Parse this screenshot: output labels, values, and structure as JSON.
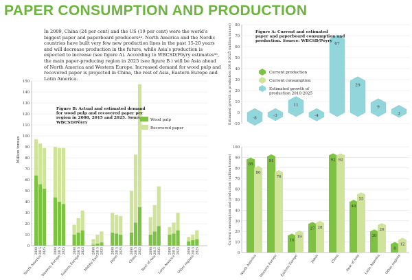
{
  "page": {
    "title": "PAPER CONSUMPTION AND PRODUCTION",
    "intro": "In 2009, China (24 per cent) and the US (19 per cent) were the world's biggest paper and paperboard producers³⁴. North America and the Nordic countries have built very few new production lines in the past 15-20 years and will decrease production in the future, while Asia's production is expected to increase (see figure A). According to WBCSD/Pöyry estimates³⁵, the main paper-producing region in 2025 (see figure B ) will be Asia ahead of North America and Western Europe. Increased demand for wood pulp and recovered paper is projected in China, the rest of Asia, Eastern Europe and Latin America."
  },
  "colors": {
    "title": "#6db33f",
    "wood_pulp": "#7dc242",
    "recovered_paper": "#cfe49a",
    "current_production": "#7dc242",
    "current_consumption": "#cfe49a",
    "estimated_growth": "#92d6dc",
    "grid": "#e2e2e2"
  },
  "chart_data": [
    {
      "type": "bar",
      "stacked": true,
      "title": "Figure B: Actual and estimated demand for wood pulp and recovered paper per region in 2008, 2015 and 2025. Source: WBCSD/Pöyry",
      "ylabel": "Million tonnes",
      "ylim": [
        0,
        150
      ],
      "yticks": [
        0,
        10,
        20,
        30,
        40,
        50,
        60,
        70,
        80,
        90,
        100,
        110,
        120,
        130,
        140,
        150
      ],
      "grid": true,
      "legend": "right",
      "years": [
        "2008",
        "2015",
        "2025"
      ],
      "categories": [
        "North America",
        "Western Europe",
        "Eastern Europe",
        "Middle East",
        "Japan",
        "China",
        "Rest of Asia",
        "Latin America",
        "Other regions"
      ],
      "series": [
        {
          "name": "Wood pulp",
          "color_key": "wood_pulp",
          "values": [
            [
              64,
              56,
              52
            ],
            [
              44,
              40,
              38
            ],
            [
              10,
              12,
              14
            ],
            [
              1,
              2,
              3
            ],
            [
              12,
              11,
              10
            ],
            [
              12,
              21,
              35
            ],
            [
              10,
              13,
              18
            ],
            [
              10,
              11,
              14
            ],
            [
              4,
              5,
              6
            ]
          ]
        },
        {
          "name": "Recovered paper",
          "color_key": "recovered_paper",
          "values": [
            [
              33,
              37,
              37
            ],
            [
              46,
              49,
              51
            ],
            [
              9,
              13,
              18
            ],
            [
              5,
              8,
              10
            ],
            [
              18,
              17,
              17
            ],
            [
              38,
              62,
              112
            ],
            [
              16,
              24,
              36
            ],
            [
              7,
              10,
              16
            ],
            [
              4,
              5,
              8
            ]
          ]
        }
      ]
    },
    {
      "type": "bar",
      "title": "Figure A: Current and estimated paper and paperboard consumption and production. Source: WBCSD/Pöyry",
      "categories": [
        "North America",
        "Western Europe",
        "Eastern Europe",
        "Japan",
        "China",
        "Rest of Asia",
        "Latin America",
        "Other regions"
      ],
      "panels": [
        {
          "name": "growth",
          "ylabel": "Estimated growth in production 2010-2025 (million tonnes)",
          "ylim": [
            -10,
            80
          ],
          "yticks": [
            -10,
            0,
            10,
            20,
            30,
            40,
            50,
            60,
            70,
            80
          ],
          "series": [
            {
              "name": "Estimated growth of production 2010-2025",
              "color_key": "estimated_growth",
              "values": [
                -8,
                -3,
                11,
                -4,
                67,
                29,
                9,
                3
              ]
            }
          ]
        },
        {
          "name": "current",
          "ylabel": "Current consumption and production (million tonnes)",
          "ylim": [
            0,
            100
          ],
          "yticks": [
            0,
            10,
            20,
            30,
            40,
            50,
            60,
            70,
            80,
            90,
            100
          ],
          "series": [
            {
              "name": "Current production",
              "color_key": "current_production",
              "values": [
                88,
                91,
                16,
                27,
                92,
                48,
                20,
                8
              ]
            },
            {
              "name": "Current consumption",
              "color_key": "current_consumption",
              "values": [
                80,
                76,
                19,
                28,
                92,
                55,
                26,
                12
              ]
            }
          ]
        }
      ],
      "legend": "top-left",
      "legend_items": [
        "Current production",
        "Current consumption",
        "Estimated growth of production 2010-2025"
      ]
    }
  ]
}
